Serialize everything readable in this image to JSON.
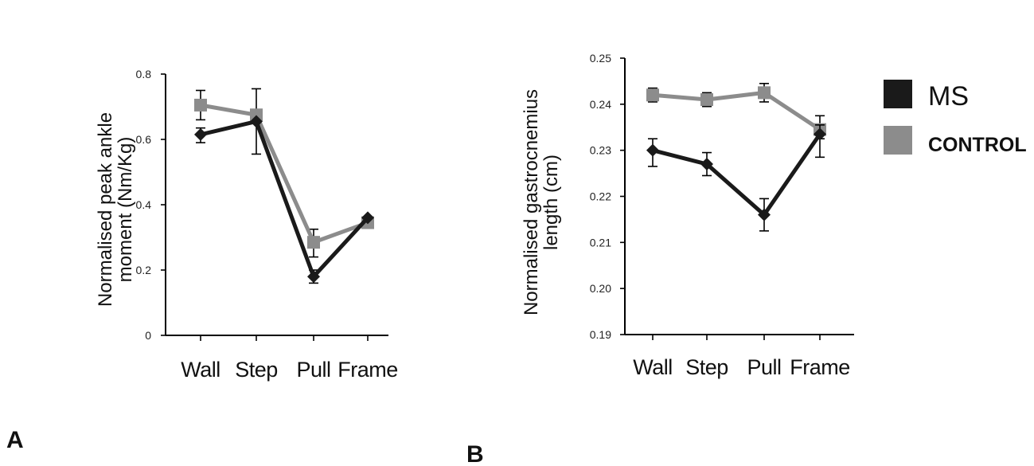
{
  "chart_data": [
    {
      "id": "A",
      "type": "line",
      "panel_label": "A",
      "title": "",
      "ylabel_lines": [
        "Normalised peak ankle",
        "moment (Nm/Kg)"
      ],
      "xlabel": "",
      "categories": [
        "Wall",
        "Step",
        "Pull",
        "Frame"
      ],
      "ylim": [
        0,
        0.8
      ],
      "yticks": [
        0,
        0.2,
        0.4,
        0.6,
        0.8
      ],
      "ytick_labels": [
        "0",
        "0.2",
        "0.4",
        "0.6",
        "0.8"
      ],
      "grid": false,
      "series": [
        {
          "name": "MS",
          "color": "#1a1a1a",
          "marker": "diamond",
          "values": [
            0.615,
            0.655,
            0.18,
            0.36
          ],
          "err_up": [
            0.02,
            0.0,
            0.02,
            0.0
          ],
          "err_down": [
            0.025,
            0.1,
            0.02,
            0.0
          ]
        },
        {
          "name": "CONTROL",
          "color": "#8c8c8c",
          "marker": "square",
          "values": [
            0.705,
            0.675,
            0.285,
            0.345
          ],
          "err_up": [
            0.045,
            0.08,
            0.04,
            0.0
          ],
          "err_down": [
            0.045,
            0.0,
            0.045,
            0.0
          ]
        }
      ]
    },
    {
      "id": "B",
      "type": "line",
      "panel_label": "B",
      "title": "",
      "ylabel_lines": [
        "Normalised gastrocnemius",
        "length (cm)"
      ],
      "xlabel": "",
      "categories": [
        "Wall",
        "Step",
        "Pull",
        "Frame"
      ],
      "ylim": [
        0.19,
        0.25
      ],
      "yticks": [
        0.19,
        0.2,
        0.21,
        0.22,
        0.23,
        0.24,
        0.25
      ],
      "ytick_labels": [
        "0.19",
        "0.20",
        "0.21",
        "0.22",
        "0.23",
        "0.24",
        "0.25"
      ],
      "grid": false,
      "series": [
        {
          "name": "MS",
          "color": "#1a1a1a",
          "marker": "diamond",
          "values": [
            0.23,
            0.227,
            0.216,
            0.2335
          ],
          "err_up": [
            0.0025,
            0.0025,
            0.0035,
            0.002
          ],
          "err_down": [
            0.0035,
            0.0025,
            0.0035,
            0.005
          ]
        },
        {
          "name": "CONTROL",
          "color": "#8c8c8c",
          "marker": "square",
          "values": [
            0.242,
            0.241,
            0.2425,
            0.2345
          ],
          "err_up": [
            0.0015,
            0.0015,
            0.002,
            0.003
          ],
          "err_down": [
            0.0015,
            0.0015,
            0.002,
            0.002
          ]
        }
      ]
    }
  ],
  "legend": {
    "placement": "right",
    "items": [
      {
        "label": "MS",
        "color": "#1a1a1a"
      },
      {
        "label": "CONTROL",
        "color": "#8c8c8c"
      }
    ]
  }
}
